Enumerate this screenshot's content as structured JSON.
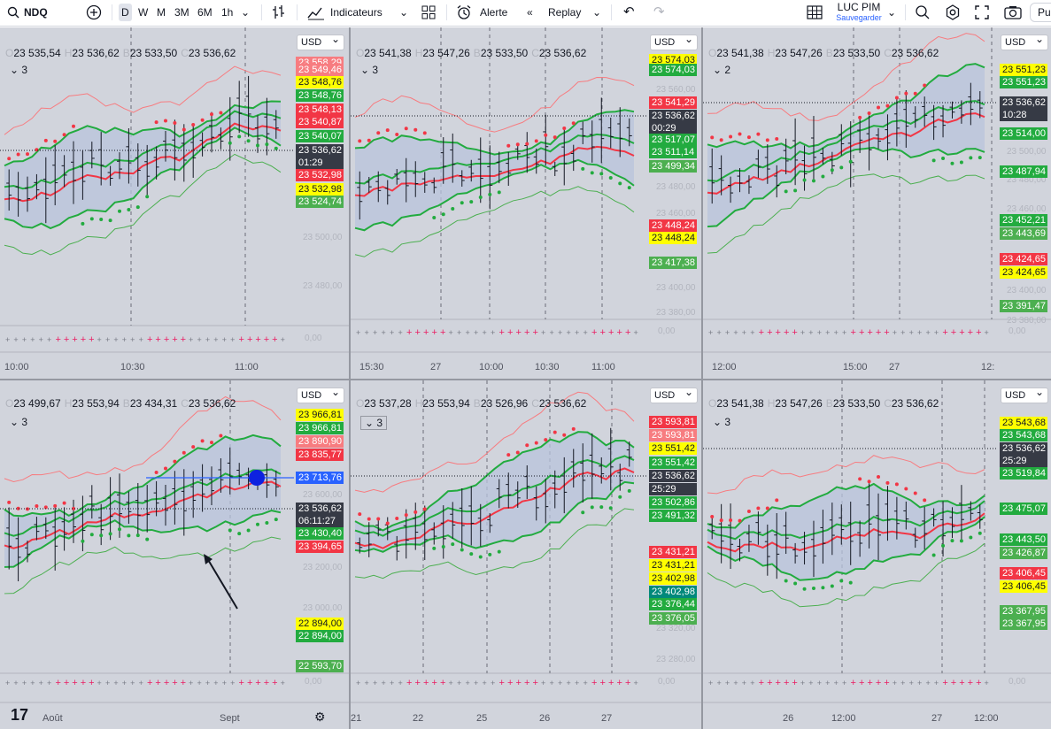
{
  "toolbar": {
    "symbol": "NDQ",
    "timeframes": [
      "D",
      "W",
      "M",
      "3M",
      "6M",
      "1h"
    ],
    "active_timeframe": "D",
    "indicators_label": "Indicateurs",
    "alert_label": "Alerte",
    "replay_label": "Replay",
    "layout_name": "LUC PIM",
    "save_label": "Sauvegarder",
    "publish_label": "Pu"
  },
  "currency": "USD",
  "panes": [
    {
      "ohlc": [
        "O",
        "23 535,54",
        "H",
        "23 536,62",
        "B",
        "23 533,50",
        "C",
        "23 536,62"
      ],
      "ind_count": "3",
      "labels": [
        [
          "23 558,29",
          "lred"
        ],
        [
          "23 549,46",
          "lred"
        ],
        [
          "23 548,76",
          "yel"
        ],
        [
          "23 548,76",
          "dgrn"
        ],
        [
          "23 548,13",
          "red"
        ],
        [
          "23 540,87",
          "red"
        ],
        [
          "23 540,07",
          "dgrn"
        ],
        [
          "23 536,62",
          "dark"
        ],
        [
          "01:29",
          "dark"
        ],
        [
          "23 532,98",
          "red"
        ],
        [
          "23 532,98",
          "yel"
        ],
        [
          "23 524,74",
          "lgrn"
        ]
      ],
      "ticks": [
        "23 500,00",
        "23 480,00"
      ],
      "zero": "0,00",
      "times": [
        "10:00",
        "10:30",
        "11:00"
      ]
    },
    {
      "ohlc": [
        "O",
        "23 541,38",
        "H",
        "23 547,26",
        "B",
        "23 533,50",
        "C",
        "23 536,62"
      ],
      "ind_count": "3",
      "labels": [
        [
          "23 574,03",
          "yel"
        ],
        [
          "23 574,03",
          "dgrn"
        ],
        [
          "23 541,29",
          "red"
        ],
        [
          "23 536,62",
          "dark"
        ],
        [
          "00:29",
          "dark"
        ],
        [
          "23 517,07",
          "dgrn"
        ],
        [
          "23 511,14",
          "dgrn"
        ],
        [
          "23 499,34",
          "lgrn"
        ],
        [
          "23 448,24",
          "red"
        ],
        [
          "23 448,24",
          "yel"
        ],
        [
          "23 417,38",
          "lgrn"
        ]
      ],
      "ticks": [
        "23 560,00",
        "23 480,00",
        "23 460,00",
        "23 440,00",
        "23 400,00",
        "23 380,00"
      ],
      "zero": "0,00",
      "times": [
        "15:30",
        "27",
        "10:00",
        "10:30",
        "11:00"
      ]
    },
    {
      "ohlc": [
        "O",
        "23 541,38",
        "H",
        "23 547,26",
        "B",
        "23 533,50",
        "C",
        "23 536,62"
      ],
      "ind_count": "2",
      "labels": [
        [
          "23 551,23",
          "yel"
        ],
        [
          "23 551,23",
          "dgrn"
        ],
        [
          "23 536,62",
          "dark"
        ],
        [
          "10:28",
          "dark"
        ],
        [
          "23 514,00",
          "dgrn"
        ],
        [
          "23 487,94",
          "dgrn"
        ],
        [
          "23 452,21",
          "dgrn"
        ],
        [
          "23 443,69",
          "lgrn"
        ],
        [
          "23 424,65",
          "red"
        ],
        [
          "23 424,65",
          "yel"
        ],
        [
          "23 391,47",
          "lgrn"
        ]
      ],
      "ticks": [
        "23 500,00",
        "23 480,00",
        "23 460,00",
        "23 400,00",
        "23 380,00"
      ],
      "zero": "0,00",
      "times": [
        "12:00",
        "15:00",
        "27",
        "12:"
      ]
    },
    {
      "ohlc": [
        "O",
        "23 499,67",
        "H",
        "23 553,94",
        "B",
        "23 434,31",
        "C",
        "23 536,62"
      ],
      "ind_count": "3",
      "labels": [
        [
          "23 966,81",
          "yel"
        ],
        [
          "23 966,81",
          "dgrn"
        ],
        [
          "23 890,90",
          "lred"
        ],
        [
          "23 835,77",
          "red"
        ],
        [
          "23 713,76",
          "blue"
        ],
        [
          "23 536,62",
          "dark"
        ],
        [
          "06:11:27",
          "dark"
        ],
        [
          "23 430,40",
          "dgrn"
        ],
        [
          "23 394,65",
          "red"
        ],
        [
          "22 894,00",
          "yel"
        ],
        [
          "22 894,00",
          "dgrn"
        ],
        [
          "22 593,70",
          "lgrn"
        ]
      ],
      "ticks": [
        "23 600,00",
        "23 200,00",
        "23 000,00"
      ],
      "zero": "0,00",
      "times": [
        "Août",
        "Sept"
      ]
    },
    {
      "ohlc": [
        "O",
        "23 537,28",
        "H",
        "23 553,94",
        "B",
        "23 526,96",
        "C",
        "23 536,62"
      ],
      "ind_count": "3",
      "labels": [
        [
          "23 593,81",
          "red"
        ],
        [
          "23 593,81",
          "lred"
        ],
        [
          "23 551,42",
          "yel"
        ],
        [
          "23 551,42",
          "dgrn"
        ],
        [
          "23 536,62",
          "dark"
        ],
        [
          "25:29",
          "dark"
        ],
        [
          "23 502,86",
          "dgrn"
        ],
        [
          "23 491,32",
          "dgrn"
        ],
        [
          "23 431,21",
          "red"
        ],
        [
          "23 431,21",
          "yel"
        ],
        [
          "23 402,98",
          "yel"
        ],
        [
          "23 402,98",
          "teal"
        ],
        [
          "23 376,44",
          "dgrn"
        ],
        [
          "23 376,05",
          "lgrn"
        ]
      ],
      "ticks": [
        "23 320,00",
        "23 280,00"
      ],
      "zero": "0,00",
      "times": [
        "21",
        "22",
        "25",
        "26",
        "27"
      ]
    },
    {
      "ohlc": [
        "O",
        "23 541,38",
        "H",
        "23 547,26",
        "B",
        "23 533,50",
        "C",
        "23 536,62"
      ],
      "ind_count": "3",
      "labels": [
        [
          "23 543,68",
          "yel"
        ],
        [
          "23 543,68",
          "dgrn"
        ],
        [
          "23 536,62",
          "dark"
        ],
        [
          "25:29",
          "dark"
        ],
        [
          "23 519,84",
          "dgrn"
        ],
        [
          "23 475,07",
          "dgrn"
        ],
        [
          "23 443,50",
          "dgrn"
        ],
        [
          "23 426,87",
          "lgrn"
        ],
        [
          "23 406,45",
          "red"
        ],
        [
          "23 406,45",
          "yel"
        ],
        [
          "23 367,95",
          "lgrn"
        ],
        [
          "23 367,95",
          "lgrn"
        ]
      ],
      "ticks": [
        "23 400,00"
      ],
      "zero": "0,00",
      "times": [
        "26",
        "12:00",
        "27",
        "12:00"
      ]
    }
  ]
}
